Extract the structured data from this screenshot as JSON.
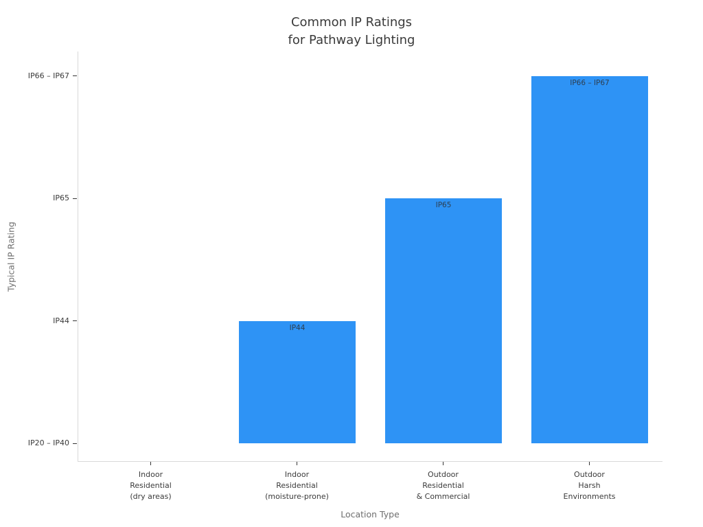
{
  "chart_data": {
    "type": "bar",
    "title": "Common IP Ratings\nfor Pathway Lighting",
    "xlabel": "Location Type",
    "ylabel": "Typical IP Rating",
    "categories": [
      "Indoor\nResidential\n(dry areas)",
      "Indoor\nResidential\n(moisture-prone)",
      "Outdoor\nResidential\n& Commercial",
      "Outdoor\nHarsh\nEnvironments"
    ],
    "values": [
      0,
      1,
      2,
      3
    ],
    "bar_value_labels": [
      "",
      "IP44",
      "IP65",
      "IP66 – IP67"
    ],
    "yticks": [
      {
        "value": 0,
        "label": "IP20 – IP40"
      },
      {
        "value": 1,
        "label": "IP44"
      },
      {
        "value": 2,
        "label": "IP65"
      },
      {
        "value": 3,
        "label": "IP66 – IP67"
      }
    ],
    "ylim": [
      -0.15,
      3.2
    ],
    "grid": false,
    "legend_position": "none",
    "colors": {
      "bar": "#2E93F5",
      "bar_label": "#2d3e50",
      "title": "#3a3a3a",
      "tick_label": "#3a3a3a",
      "axis_label": "#6e6e6e",
      "spine": "#d9d9d9",
      "tick_mark": "#333333"
    }
  }
}
